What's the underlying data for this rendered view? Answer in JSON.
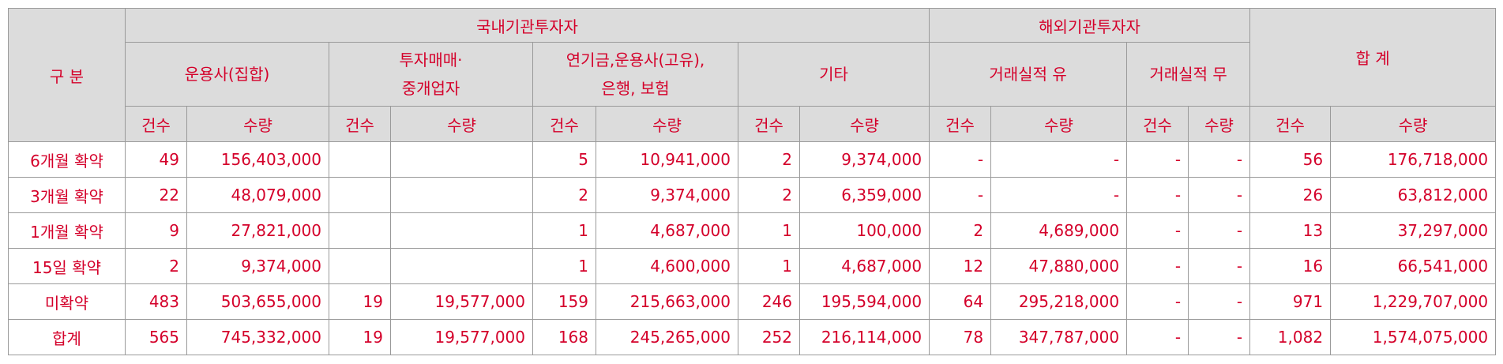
{
  "header": {
    "category": "구 분",
    "domestic": "국내기관투자자",
    "overseas": "해외기관투자자",
    "total": "합 계",
    "groups": {
      "asset_mgmt_line1": "운용사(집합)",
      "dealer_line1": "투자매매·",
      "dealer_line2": "중개업자",
      "pension_line1": "연기금,운용사(고유),",
      "pension_line2": "은행, 보험",
      "other": "기타",
      "overseas_with_record": "거래실적 유",
      "overseas_without_record": "거래실적 무"
    },
    "count": "건수",
    "quantity": "수량"
  },
  "rows": [
    {
      "label": "6개월 확약",
      "cells": [
        "49",
        "156,403,000",
        "",
        "",
        "5",
        "10,941,000",
        "2",
        "9,374,000",
        "-",
        "-",
        "-",
        "-",
        "56",
        "176,718,000"
      ]
    },
    {
      "label": "3개월 확약",
      "cells": [
        "22",
        "48,079,000",
        "",
        "",
        "2",
        "9,374,000",
        "2",
        "6,359,000",
        "-",
        "-",
        "-",
        "-",
        "26",
        "63,812,000"
      ]
    },
    {
      "label": "1개월 확약",
      "cells": [
        "9",
        "27,821,000",
        "",
        "",
        "1",
        "4,687,000",
        "1",
        "100,000",
        "2",
        "4,689,000",
        "-",
        "-",
        "13",
        "37,297,000"
      ]
    },
    {
      "label": "15일 확약",
      "cells": [
        "2",
        "9,374,000",
        "",
        "",
        "1",
        "4,600,000",
        "1",
        "4,687,000",
        "12",
        "47,880,000",
        "-",
        "-",
        "16",
        "66,541,000"
      ]
    },
    {
      "label": "미확약",
      "cells": [
        "483",
        "503,655,000",
        "19",
        "19,577,000",
        "159",
        "215,663,000",
        "246",
        "195,594,000",
        "64",
        "295,218,000",
        "-",
        "-",
        "971",
        "1,229,707,000"
      ]
    },
    {
      "label": "합계",
      "cells": [
        "565",
        "745,332,000",
        "19",
        "19,577,000",
        "168",
        "245,265,000",
        "252",
        "216,114,000",
        "78",
        "347,787,000",
        "-",
        "-",
        "1,082",
        "1,574,075,000"
      ]
    }
  ]
}
